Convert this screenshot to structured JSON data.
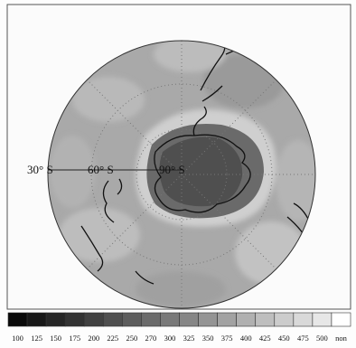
{
  "map": {
    "lat_labels": [
      "30° S",
      "60° S",
      "90° S"
    ],
    "colorbar": {
      "labels": [
        "100",
        "125",
        "150",
        "175",
        "200",
        "225",
        "250",
        "270",
        "300",
        "325",
        "350",
        "375",
        "400",
        "425",
        "450",
        "475",
        "500",
        "non"
      ]
    }
  }
}
